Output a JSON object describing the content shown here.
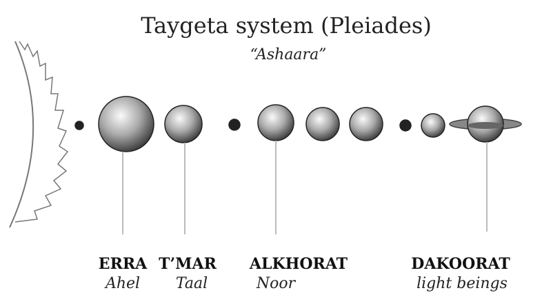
{
  "title": "Taygeta system (Pleiades)",
  "subtitle": "“Ashaara”",
  "planets": [
    {
      "name": "ERRA",
      "alias": "Ahel"
    },
    {
      "name": "T’MAR",
      "alias": "Taal"
    },
    {
      "name": "ALKHORAT",
      "alias": "Noor"
    },
    {
      "name": "DAKOORAT",
      "alias": "light beings"
    }
  ]
}
